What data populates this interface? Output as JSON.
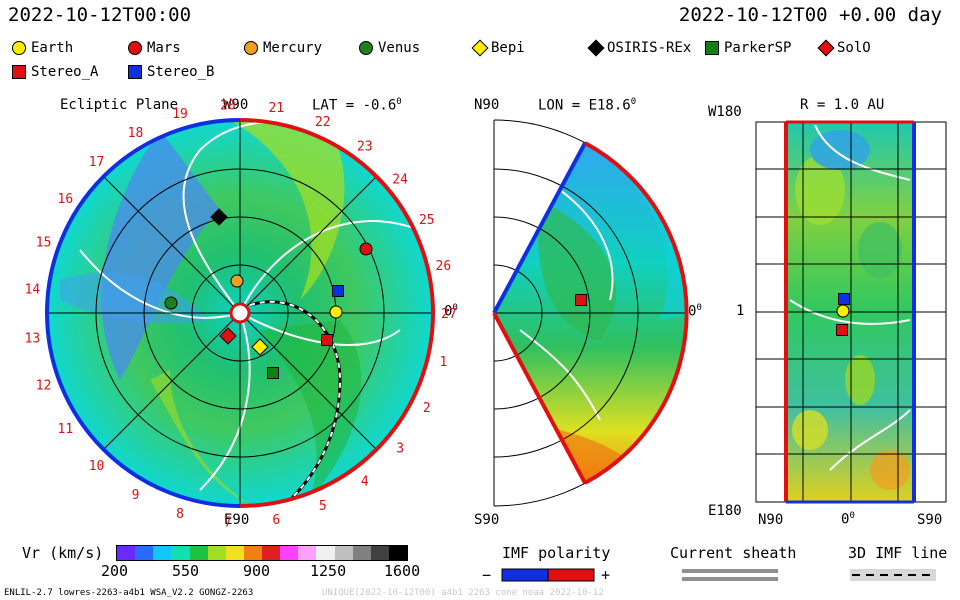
{
  "header": {
    "datetime_left": "2022-10-12T00:00",
    "datetime_right": "2022-10-12T00 +0.00 day"
  },
  "legend": [
    {
      "label": "Earth",
      "shape": "circle",
      "color": "#ffee00"
    },
    {
      "label": "Mars",
      "shape": "circle",
      "color": "#e01010"
    },
    {
      "label": "Mercury",
      "shape": "circle",
      "color": "#f0a020"
    },
    {
      "label": "Venus",
      "shape": "circle",
      "color": "#208020"
    },
    {
      "label": "Bepi",
      "shape": "diamond",
      "color": "#ffee00"
    },
    {
      "label": "OSIRIS-REx",
      "shape": "diamond",
      "color": "#000000"
    },
    {
      "label": "ParkerSP",
      "shape": "square",
      "color": "#108010"
    },
    {
      "label": "SolO",
      "shape": "diamond",
      "color": "#e01010"
    },
    {
      "label": "Stereo_A",
      "shape": "square",
      "color": "#e01010"
    },
    {
      "label": "Stereo_B",
      "shape": "square",
      "color": "#1030e0"
    }
  ],
  "panel_ecliptic": {
    "title": "Ecliptic Plane",
    "top_label": "W90",
    "bottom_label": "E90",
    "right_label": "0",
    "lat_label": "LAT = -0.6",
    "deg": "0",
    "carrington_ticks": [
      "1",
      "2",
      "3",
      "4",
      "5",
      "6",
      "7",
      "8",
      "9",
      "10",
      "11",
      "12",
      "13",
      "14",
      "15",
      "16",
      "17",
      "18",
      "19",
      "20",
      "21",
      "22",
      "23",
      "24",
      "25",
      "26",
      "27"
    ]
  },
  "panel_meridional": {
    "top_label": "N90",
    "bottom_label": "S90",
    "right_label": "0",
    "lon_label": "LON = E18.6",
    "deg": "0"
  },
  "panel_radial": {
    "top_left_label": "W180",
    "bottom_left_label": "E180",
    "mid_left_label": "1",
    "r_label": "R = 1.0 AU",
    "x_labels": [
      "N90",
      "0",
      "S90"
    ],
    "deg": "0"
  },
  "colorbar": {
    "label": "Vr (km/s)",
    "ticks": [
      "200",
      "550",
      "900",
      "1250",
      "1600"
    ],
    "colors": [
      "#6a2aff",
      "#2a6aff",
      "#10c8ff",
      "#10e0b0",
      "#20c040",
      "#a0e020",
      "#f0e020",
      "#f08010",
      "#e02020",
      "#ff40ff",
      "#ffa0ff",
      "#f0f0f0",
      "#c0c0c0",
      "#808080",
      "#404040",
      "#000000"
    ]
  },
  "imf_polarity": {
    "title": "IMF polarity",
    "minus": "−",
    "plus": "+"
  },
  "current_sheath": {
    "title": "Current sheath"
  },
  "imf_line": {
    "title": "3D IMF line"
  },
  "footer": {
    "left": "ENLIL-2.7 lowres-2263-a4b1 WSA_V2.2 GONGZ-2263",
    "right": "UNIQUE(2022-10-12T00) a4b1 2263 cone noaa  2022-10-12"
  }
}
